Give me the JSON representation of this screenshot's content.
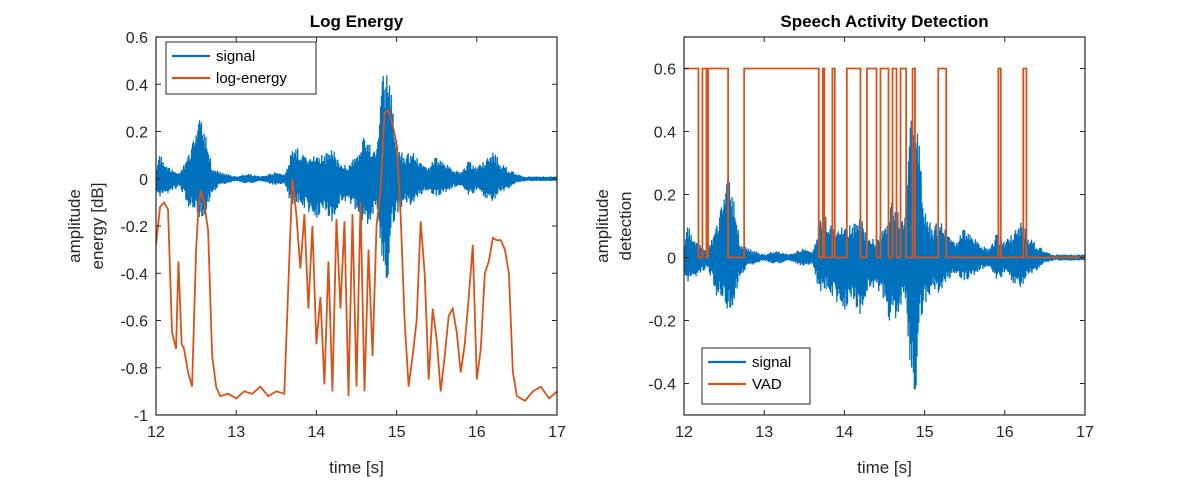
{
  "chart_data": [
    {
      "type": "line",
      "title": "Log Energy",
      "xlabel": "time [s]",
      "ylabel_top": "amplitude",
      "ylabel_bottom": "energy [dB]",
      "xlim": [
        12,
        17
      ],
      "ylim": [
        -1,
        0.6
      ],
      "xticks": [
        12,
        13,
        14,
        15,
        16,
        17
      ],
      "yticks": [
        -1,
        -0.8,
        -0.6,
        -0.4,
        -0.2,
        0,
        0.2,
        0.4,
        0.6
      ],
      "legend_position": "top-left",
      "series": [
        {
          "name": "signal",
          "color": "#0072BD",
          "kind": "band",
          "x": [
            12.0,
            12.05,
            12.1,
            12.2,
            12.3,
            12.4,
            12.5,
            12.55,
            12.6,
            12.7,
            12.8,
            12.9,
            13.0,
            13.1,
            13.2,
            13.3,
            13.4,
            13.5,
            13.6,
            13.7,
            13.75,
            13.8,
            13.9,
            14.0,
            14.1,
            14.2,
            14.25,
            14.3,
            14.4,
            14.5,
            14.55,
            14.6,
            14.7,
            14.75,
            14.8,
            14.85,
            14.9,
            14.95,
            15.0,
            15.1,
            15.2,
            15.3,
            15.4,
            15.5,
            15.6,
            15.7,
            15.8,
            15.9,
            16.0,
            16.1,
            16.2,
            16.3,
            16.4,
            16.5,
            16.6,
            16.7,
            16.8,
            16.9,
            17.0
          ],
          "upper": [
            0.05,
            0.12,
            0.06,
            0.04,
            0.03,
            0.1,
            0.2,
            0.26,
            0.22,
            0.05,
            0.03,
            0.02,
            0.01,
            0.02,
            0.02,
            0.01,
            0.02,
            0.03,
            0.02,
            0.13,
            0.15,
            0.11,
            0.1,
            0.12,
            0.1,
            0.14,
            0.1,
            0.06,
            0.06,
            0.1,
            0.12,
            0.2,
            0.15,
            0.1,
            0.35,
            0.5,
            0.48,
            0.3,
            0.15,
            0.1,
            0.12,
            0.07,
            0.05,
            0.1,
            0.07,
            0.04,
            0.03,
            0.08,
            0.05,
            0.08,
            0.12,
            0.07,
            0.04,
            0.02,
            0.01,
            0.01,
            0.01,
            0.01,
            0.01
          ],
          "lower": [
            -0.05,
            -0.1,
            -0.07,
            -0.05,
            -0.04,
            -0.12,
            -0.15,
            -0.18,
            -0.16,
            -0.06,
            -0.03,
            -0.02,
            -0.01,
            -0.02,
            -0.02,
            -0.01,
            -0.02,
            -0.03,
            -0.02,
            -0.13,
            -0.1,
            -0.11,
            -0.15,
            -0.18,
            -0.12,
            -0.2,
            -0.15,
            -0.1,
            -0.12,
            -0.15,
            -0.2,
            -0.22,
            -0.18,
            -0.12,
            -0.3,
            -0.45,
            -0.43,
            -0.2,
            -0.15,
            -0.1,
            -0.12,
            -0.07,
            -0.05,
            -0.08,
            -0.06,
            -0.04,
            -0.03,
            -0.08,
            -0.05,
            -0.08,
            -0.1,
            -0.06,
            -0.04,
            -0.02,
            -0.01,
            -0.01,
            -0.01,
            -0.01,
            -0.01
          ]
        },
        {
          "name": "log-energy",
          "color": "#D95319",
          "kind": "line",
          "x": [
            12.0,
            12.05,
            12.1,
            12.15,
            12.2,
            12.25,
            12.28,
            12.32,
            12.35,
            12.4,
            12.45,
            12.5,
            12.53,
            12.56,
            12.6,
            12.65,
            12.7,
            12.75,
            12.8,
            12.9,
            13.0,
            13.1,
            13.2,
            13.3,
            13.4,
            13.5,
            13.6,
            13.65,
            13.7,
            13.75,
            13.8,
            13.85,
            13.9,
            13.95,
            14.0,
            14.05,
            14.1,
            14.15,
            14.2,
            14.25,
            14.3,
            14.35,
            14.4,
            14.45,
            14.5,
            14.55,
            14.6,
            14.65,
            14.7,
            14.75,
            14.8,
            14.85,
            14.9,
            14.95,
            15.0,
            15.05,
            15.1,
            15.15,
            15.2,
            15.25,
            15.3,
            15.35,
            15.4,
            15.45,
            15.5,
            15.55,
            15.6,
            15.65,
            15.7,
            15.75,
            15.8,
            15.85,
            15.9,
            15.95,
            16.0,
            16.05,
            16.1,
            16.15,
            16.2,
            16.25,
            16.3,
            16.35,
            16.4,
            16.45,
            16.5,
            16.6,
            16.7,
            16.8,
            16.9,
            17.0
          ],
          "y": [
            -0.28,
            -0.12,
            -0.1,
            -0.13,
            -0.65,
            -0.72,
            -0.35,
            -0.7,
            -0.72,
            -0.82,
            -0.88,
            -0.3,
            -0.12,
            -0.05,
            -0.1,
            -0.22,
            -0.75,
            -0.88,
            -0.92,
            -0.91,
            -0.93,
            -0.9,
            -0.91,
            -0.88,
            -0.92,
            -0.9,
            -0.91,
            -0.45,
            0.0,
            -0.15,
            -0.38,
            -0.15,
            -0.55,
            -0.2,
            -0.7,
            -0.5,
            -0.87,
            -0.35,
            -0.9,
            -0.17,
            -0.55,
            -0.18,
            -0.92,
            -0.15,
            -0.88,
            -0.1,
            -0.9,
            -0.3,
            -0.75,
            -0.2,
            -0.05,
            0.28,
            0.29,
            0.23,
            0.15,
            -0.15,
            -0.6,
            -0.88,
            -0.75,
            -0.6,
            -0.18,
            -0.4,
            -0.85,
            -0.55,
            -0.68,
            -0.9,
            -0.75,
            -0.58,
            -0.55,
            -0.65,
            -0.82,
            -0.7,
            -0.5,
            -0.28,
            -0.85,
            -0.72,
            -0.4,
            -0.35,
            -0.25,
            -0.26,
            -0.26,
            -0.3,
            -0.4,
            -0.82,
            -0.92,
            -0.94,
            -0.9,
            -0.88,
            -0.93,
            -0.9
          ]
        }
      ]
    },
    {
      "type": "line",
      "title": "Speech Activity Detection",
      "xlabel": "time [s]",
      "ylabel_top": "amplitude",
      "ylabel_bottom": "detection",
      "xlim": [
        12,
        17
      ],
      "ylim": [
        -0.5,
        0.7
      ],
      "xticks": [
        12,
        13,
        14,
        15,
        16,
        17
      ],
      "yticks": [
        -0.4,
        -0.2,
        0,
        0.2,
        0.4,
        0.6
      ],
      "legend_position": "bottom-left",
      "series": [
        {
          "name": "signal",
          "color": "#0072BD",
          "kind": "band",
          "x": [
            12.0,
            12.05,
            12.1,
            12.2,
            12.3,
            12.4,
            12.5,
            12.55,
            12.6,
            12.7,
            12.8,
            12.9,
            13.0,
            13.1,
            13.2,
            13.3,
            13.4,
            13.5,
            13.6,
            13.7,
            13.75,
            13.8,
            13.9,
            14.0,
            14.1,
            14.2,
            14.25,
            14.3,
            14.4,
            14.5,
            14.55,
            14.6,
            14.7,
            14.75,
            14.8,
            14.85,
            14.9,
            14.95,
            15.0,
            15.1,
            15.2,
            15.3,
            15.4,
            15.5,
            15.6,
            15.7,
            15.8,
            15.9,
            16.0,
            16.1,
            16.2,
            16.3,
            16.4,
            16.5,
            16.6,
            16.7,
            16.8,
            16.9,
            17.0
          ],
          "upper": [
            0.05,
            0.12,
            0.06,
            0.04,
            0.03,
            0.1,
            0.2,
            0.26,
            0.22,
            0.05,
            0.03,
            0.02,
            0.01,
            0.02,
            0.02,
            0.01,
            0.02,
            0.03,
            0.02,
            0.13,
            0.15,
            0.11,
            0.1,
            0.12,
            0.1,
            0.14,
            0.1,
            0.06,
            0.06,
            0.1,
            0.12,
            0.2,
            0.15,
            0.1,
            0.35,
            0.5,
            0.48,
            0.3,
            0.15,
            0.1,
            0.12,
            0.07,
            0.05,
            0.1,
            0.07,
            0.04,
            0.03,
            0.08,
            0.05,
            0.08,
            0.12,
            0.07,
            0.04,
            0.02,
            0.01,
            0.01,
            0.01,
            0.01,
            0.01
          ],
          "lower": [
            -0.05,
            -0.1,
            -0.07,
            -0.05,
            -0.04,
            -0.12,
            -0.15,
            -0.18,
            -0.16,
            -0.06,
            -0.03,
            -0.02,
            -0.01,
            -0.02,
            -0.02,
            -0.01,
            -0.02,
            -0.03,
            -0.02,
            -0.13,
            -0.1,
            -0.11,
            -0.15,
            -0.18,
            -0.12,
            -0.2,
            -0.15,
            -0.1,
            -0.12,
            -0.15,
            -0.2,
            -0.22,
            -0.18,
            -0.12,
            -0.3,
            -0.45,
            -0.43,
            -0.2,
            -0.15,
            -0.1,
            -0.12,
            -0.07,
            -0.05,
            -0.08,
            -0.06,
            -0.04,
            -0.03,
            -0.08,
            -0.05,
            -0.08,
            -0.1,
            -0.06,
            -0.04,
            -0.02,
            -0.01,
            -0.01,
            -0.01,
            -0.01,
            -0.01
          ]
        },
        {
          "name": "VAD",
          "color": "#D95319",
          "kind": "step",
          "x": [
            12.0,
            12.18,
            12.18,
            12.23,
            12.23,
            12.28,
            12.28,
            12.3,
            12.3,
            12.55,
            12.55,
            12.75,
            12.75,
            13.68,
            13.68,
            13.73,
            13.73,
            13.75,
            13.75,
            13.85,
            13.85,
            13.88,
            13.88,
            14.03,
            14.03,
            14.2,
            14.2,
            14.28,
            14.28,
            14.4,
            14.4,
            14.45,
            14.45,
            14.55,
            14.55,
            14.6,
            14.6,
            14.65,
            14.65,
            14.7,
            14.7,
            14.77,
            14.77,
            14.85,
            14.85,
            14.88,
            14.88,
            15.17,
            15.17,
            15.27,
            15.27,
            15.92,
            15.92,
            15.95,
            15.95,
            16.23,
            16.23,
            16.27,
            16.27,
            17.0
          ],
          "y": [
            0.6,
            0.6,
            0.0,
            0.0,
            0.6,
            0.6,
            0.0,
            0.0,
            0.6,
            0.6,
            0.0,
            0.0,
            0.6,
            0.6,
            0.0,
            0.0,
            0.6,
            0.6,
            0.0,
            0.0,
            0.6,
            0.6,
            0.0,
            0.0,
            0.6,
            0.6,
            0.0,
            0.0,
            0.6,
            0.6,
            0.0,
            0.0,
            0.6,
            0.6,
            0.0,
            0.0,
            0.6,
            0.6,
            0.0,
            0.0,
            0.6,
            0.6,
            0.0,
            0.0,
            0.6,
            0.6,
            0.0,
            0.0,
            0.6,
            0.6,
            0.0,
            0.0,
            0.6,
            0.6,
            0.0,
            0.0,
            0.6,
            0.6,
            0.0,
            0.0
          ]
        }
      ]
    }
  ]
}
